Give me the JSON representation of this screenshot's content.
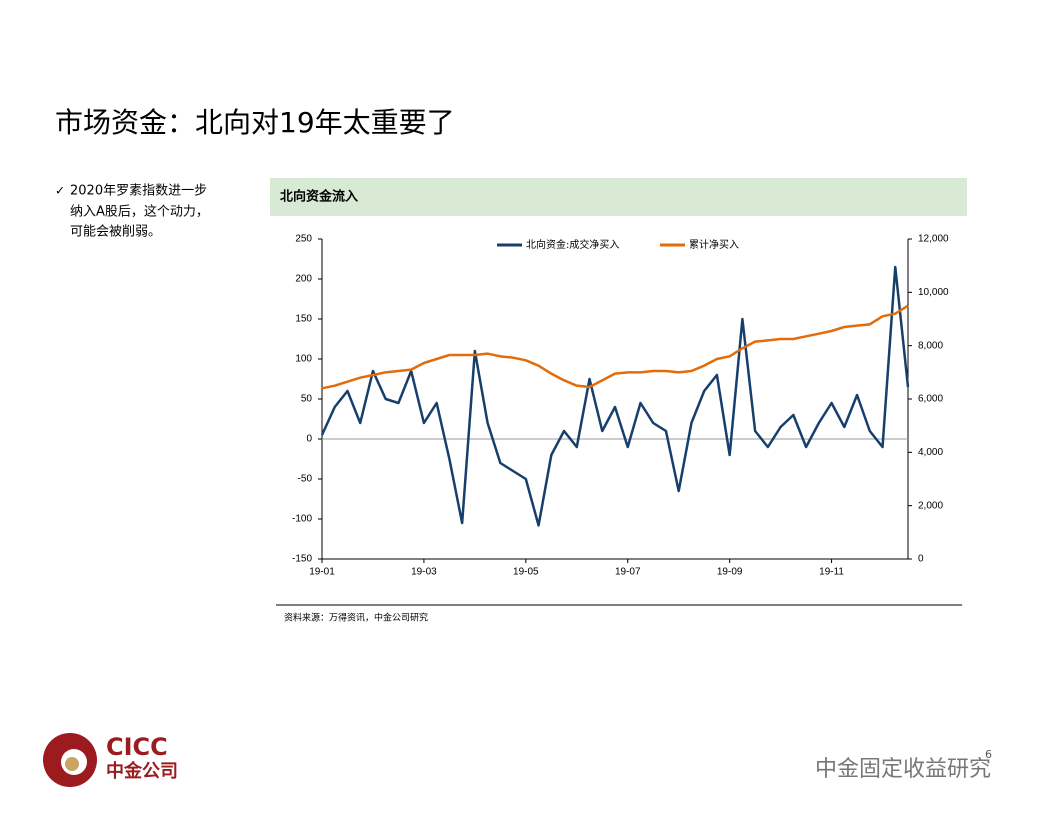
{
  "slide": {
    "title": "市场资金：北向对19年太重要了",
    "bullet": [
      "2020年罗素指数进一步",
      "纳入A股后，这个动力，",
      "可能会被削弱。"
    ],
    "panel_title": "北向资金流入",
    "source": "资料来源：万得资讯，中金公司研究",
    "logo": "CICC",
    "logo_sub": "中金公司",
    "watermark": "中金固定收益研究",
    "page": "6"
  },
  "chart_data": {
    "type": "line",
    "categories": [
      "19-01",
      null,
      null,
      null,
      null,
      null,
      null,
      null,
      "19-03",
      null,
      null,
      null,
      null,
      null,
      null,
      null,
      "19-05",
      null,
      null,
      null,
      null,
      null,
      null,
      null,
      "19-07",
      null,
      null,
      null,
      null,
      null,
      null,
      null,
      "19-09",
      null,
      null,
      null,
      null,
      null,
      null,
      null,
      "19-11",
      null,
      null,
      null,
      null,
      null,
      null
    ],
    "series": [
      {
        "name": "北向资金:成交净买入",
        "color": "#173f6b",
        "values": [
          5,
          40,
          60,
          20,
          85,
          50,
          45,
          85,
          20,
          45,
          -25,
          -105,
          110,
          20,
          -30,
          -40,
          -50,
          -108,
          -20,
          10,
          -10,
          75,
          10,
          40,
          -10,
          45,
          20,
          10,
          -65,
          20,
          60,
          80,
          -20,
          150,
          10,
          -10,
          15,
          30,
          -10,
          20,
          45,
          15,
          55,
          10,
          -10,
          215,
          65
        ]
      },
      {
        "name": "累计净买入",
        "color": "#e36c0a",
        "axis": "y2",
        "values": [
          6400,
          6500,
          6650,
          6800,
          6900,
          7000,
          7050,
          7100,
          7350,
          7500,
          7650,
          7650,
          7650,
          7700,
          7600,
          7550,
          7450,
          7250,
          6950,
          6700,
          6500,
          6450,
          6700,
          6950,
          7000,
          7000,
          7050,
          7050,
          7000,
          7050,
          7250,
          7500,
          7600,
          7900,
          8150,
          8200,
          8250,
          8250,
          8350,
          8450,
          8550,
          8700,
          8750,
          8800,
          9100,
          9200,
          9500
        ]
      }
    ],
    "ylim": [
      -150,
      250
    ],
    "yticks": [
      -150,
      -100,
      -50,
      0,
      50,
      100,
      150,
      200,
      250
    ],
    "y2lim": [
      0,
      12000
    ],
    "y2ticks": [
      0,
      {
        "value": 2000,
        "label": "2,000"
      },
      {
        "value": 4000,
        "label": "4,000"
      },
      {
        "value": 6000,
        "label": "6,000"
      },
      {
        "value": 8000,
        "label": "8,000"
      },
      {
        "value": 10000,
        "label": "10,000"
      },
      {
        "value": 12000,
        "label": "12,000"
      }
    ],
    "grid": false,
    "legend": "top"
  }
}
